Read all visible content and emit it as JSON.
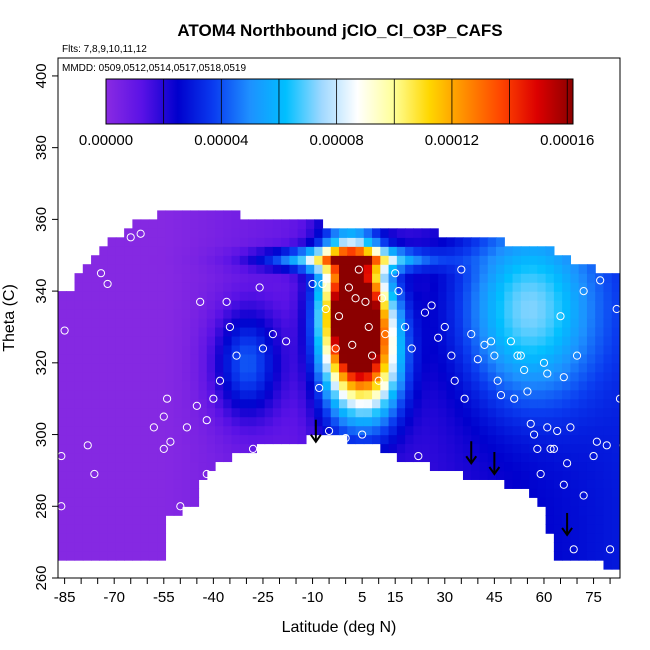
{
  "chart_data": {
    "type": "heatmap",
    "title": "ATOM4 Northbound jClO_Cl_O3P_CAFS",
    "subtitle_flights": "Flts: 7,8,9,10,11,12",
    "subtitle_dates": "MMDD: 0509,0512,0514,0517,0518,0519",
    "xlabel": "Latitude (deg N)",
    "ylabel": "Theta (C)",
    "xlim": [
      -87,
      83
    ],
    "ylim": [
      260,
      405
    ],
    "x_ticks": [
      "-85",
      "-70",
      "-55",
      "-40",
      "-25",
      "-10",
      "5",
      "15",
      "30",
      "45",
      "60",
      "75"
    ],
    "y_ticks": [
      "260",
      "280",
      "300",
      "320",
      "340",
      "360",
      "380",
      "400"
    ],
    "colorbar": {
      "range": [
        0,
        0.000162
      ],
      "tick_labels": [
        "0.00000",
        "0.00004",
        "0.00008",
        "0.00012",
        "0.00016"
      ],
      "colors": [
        "#8a2be2",
        "#5a12e6",
        "#0000cd",
        "#0a3cf0",
        "#1e90ff",
        "#00bfff",
        "#9fd8ff",
        "#ffffff",
        "#ffff99",
        "#ffd700",
        "#ff8c00",
        "#ff4500",
        "#dc0000",
        "#8b0000"
      ]
    },
    "field_notes": "Gridded jClO values peak (~0.00015) near 0-5N at 320-345 K, low (~0.00000) over southern latitudes, moderate blue tropopause-level band near 345-355 K.",
    "field_hotspots": [
      {
        "lat": 3,
        "theta": 335,
        "value": 0.000158,
        "spread_lat": 8,
        "spread_theta": 16
      },
      {
        "lat": 8,
        "theta": 322,
        "value": 9.5e-05,
        "spread_lat": 9,
        "spread_theta": 18
      },
      {
        "lat": -2,
        "theta": 330,
        "value": 6e-05,
        "spread_lat": 8,
        "spread_theta": 25
      },
      {
        "lat": 0,
        "theta": 349,
        "value": 7.5e-05,
        "spread_lat": 22,
        "spread_theta": 3
      },
      {
        "lat": 55,
        "theta": 335,
        "value": 4.8e-05,
        "spread_lat": 20,
        "spread_theta": 25
      },
      {
        "lat": -30,
        "theta": 320,
        "value": 3.5e-05,
        "spread_lat": 10,
        "spread_theta": 15
      }
    ],
    "data_coverage": {
      "top_theta_by_lat": [
        [
          -84,
          340
        ],
        [
          -75,
          352
        ],
        [
          -62,
          360
        ],
        [
          -55,
          362
        ],
        [
          -40,
          362
        ],
        [
          -20,
          360
        ],
        [
          0,
          358
        ],
        [
          20,
          357
        ],
        [
          40,
          355
        ],
        [
          60,
          352
        ],
        [
          75,
          346
        ],
        [
          82,
          345
        ]
      ],
      "bottom_theta_by_lat": [
        [
          -87,
          265
        ],
        [
          -54,
          265
        ],
        [
          -54,
          276
        ],
        [
          -46,
          280
        ],
        [
          -43,
          289
        ],
        [
          -30,
          296
        ],
        [
          -15,
          298
        ],
        [
          -5,
          300
        ],
        [
          5,
          298
        ],
        [
          15,
          294
        ],
        [
          30,
          290
        ],
        [
          40,
          288
        ],
        [
          50,
          286
        ],
        [
          58,
          282
        ],
        [
          62,
          272
        ],
        [
          64,
          265
        ],
        [
          70,
          265
        ],
        [
          83,
          263
        ]
      ]
    },
    "observations": [
      [
        -86,
        294
      ],
      [
        -86,
        280
      ],
      [
        -85,
        329
      ],
      [
        -78,
        297
      ],
      [
        -76,
        289
      ],
      [
        -74,
        345
      ],
      [
        -72,
        342
      ],
      [
        -65,
        355
      ],
      [
        -62,
        356
      ],
      [
        -58,
        302
      ],
      [
        -55,
        305
      ],
      [
        -55,
        296
      ],
      [
        -54,
        310
      ],
      [
        -53,
        298
      ],
      [
        -52,
        276
      ],
      [
        -50,
        280
      ],
      [
        -48,
        302
      ],
      [
        -45,
        308
      ],
      [
        -44,
        337
      ],
      [
        -42,
        304
      ],
      [
        -42,
        289
      ],
      [
        -40,
        310
      ],
      [
        -38,
        315
      ],
      [
        -36,
        337
      ],
      [
        -35,
        330
      ],
      [
        -33,
        322
      ],
      [
        -32,
        292
      ],
      [
        -28,
        296
      ],
      [
        -26,
        341
      ],
      [
        -25,
        324
      ],
      [
        -22,
        328
      ],
      [
        -20,
        296
      ],
      [
        -18,
        326
      ],
      [
        -15,
        292
      ],
      [
        -12,
        288
      ],
      [
        -10,
        342
      ],
      [
        -8,
        313
      ],
      [
        -7,
        342
      ],
      [
        -6,
        335
      ],
      [
        -5,
        301
      ],
      [
        -3,
        324
      ],
      [
        -2,
        333
      ],
      [
        0,
        299
      ],
      [
        1,
        341
      ],
      [
        2,
        325
      ],
      [
        3,
        338
      ],
      [
        4,
        346
      ],
      [
        5,
        300
      ],
      [
        6,
        337
      ],
      [
        7,
        330
      ],
      [
        8,
        322
      ],
      [
        10,
        315
      ],
      [
        11,
        338
      ],
      [
        12,
        328
      ],
      [
        14,
        292
      ],
      [
        15,
        345
      ],
      [
        16,
        340
      ],
      [
        18,
        330
      ],
      [
        20,
        324
      ],
      [
        22,
        294
      ],
      [
        24,
        334
      ],
      [
        26,
        336
      ],
      [
        28,
        327
      ],
      [
        30,
        330
      ],
      [
        32,
        322
      ],
      [
        33,
        315
      ],
      [
        35,
        346
      ],
      [
        36,
        310
      ],
      [
        38,
        328
      ],
      [
        40,
        321
      ],
      [
        42,
        325
      ],
      [
        44,
        326
      ],
      [
        45,
        322
      ],
      [
        46,
        315
      ],
      [
        47,
        311
      ],
      [
        50,
        326
      ],
      [
        51,
        310
      ],
      [
        52,
        322
      ],
      [
        53,
        322
      ],
      [
        54,
        318
      ],
      [
        55,
        312
      ],
      [
        56,
        303
      ],
      [
        57,
        300
      ],
      [
        58,
        296
      ],
      [
        59,
        289
      ],
      [
        60,
        320
      ],
      [
        61,
        317
      ],
      [
        61,
        302
      ],
      [
        62,
        296
      ],
      [
        63,
        296
      ],
      [
        64,
        301
      ],
      [
        65,
        333
      ],
      [
        66,
        316
      ],
      [
        66,
        286
      ],
      [
        67,
        292
      ],
      [
        68,
        302
      ],
      [
        69,
        268
      ],
      [
        70,
        322
      ],
      [
        72,
        340
      ],
      [
        72,
        283
      ],
      [
        75,
        294
      ],
      [
        76,
        298
      ],
      [
        77,
        343
      ],
      [
        78,
        350
      ],
      [
        79,
        297
      ],
      [
        80,
        268
      ],
      [
        82,
        335
      ],
      [
        83,
        310
      ],
      [
        84,
        297
      ]
    ],
    "markers_arrows": [
      [
        -9,
        298
      ],
      [
        38,
        292
      ],
      [
        45,
        289
      ],
      [
        67,
        272
      ]
    ]
  }
}
